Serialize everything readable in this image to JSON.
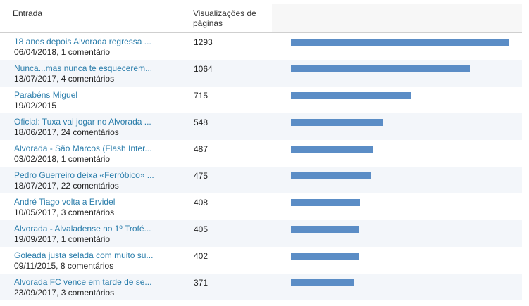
{
  "header": {
    "entry_label": "Entrada",
    "views_label": "Visualizações de páginas"
  },
  "bar_color": "#5b8dc6",
  "link_color": "#2a7dab",
  "max_views": 1293,
  "rows": [
    {
      "title": "18 anos depois Alvorada regressa ...",
      "date": "06/04/2018",
      "comments": "1 comentário",
      "views": "1293",
      "value": 1293
    },
    {
      "title": "Nunca...mas nunca te esquecerem...",
      "date": "13/07/2017",
      "comments": "4 comentários",
      "views": "1064",
      "value": 1064
    },
    {
      "title": "Parabéns Miguel",
      "date": "19/02/2015",
      "comments": "",
      "views": "715",
      "value": 715
    },
    {
      "title": "Oficial: Tuxa vai jogar no Alvorada ...",
      "date": "18/06/2017",
      "comments": "24 comentários",
      "views": "548",
      "value": 548
    },
    {
      "title": "Alvorada - São Marcos (Flash Inter...",
      "date": "03/02/2018",
      "comments": "1 comentário",
      "views": "487",
      "value": 487
    },
    {
      "title": "Pedro Guerreiro deixa «Ferróbico» ...",
      "date": "18/07/2017",
      "comments": "22 comentários",
      "views": "475",
      "value": 475
    },
    {
      "title": "André Tiago volta a Ervidel",
      "date": "10/05/2017",
      "comments": "3 comentários",
      "views": "408",
      "value": 408
    },
    {
      "title": "Alvorada - Alvaladense no 1º Trofé...",
      "date": "19/09/2017",
      "comments": "1 comentário",
      "views": "405",
      "value": 405
    },
    {
      "title": "Goleada justa selada com muito su...",
      "date": "09/11/2015",
      "comments": "8 comentários",
      "views": "402",
      "value": 402
    },
    {
      "title": "Alvorada FC vence em tarde de se...",
      "date": "23/09/2017",
      "comments": "3 comentários",
      "views": "371",
      "value": 371
    }
  ]
}
